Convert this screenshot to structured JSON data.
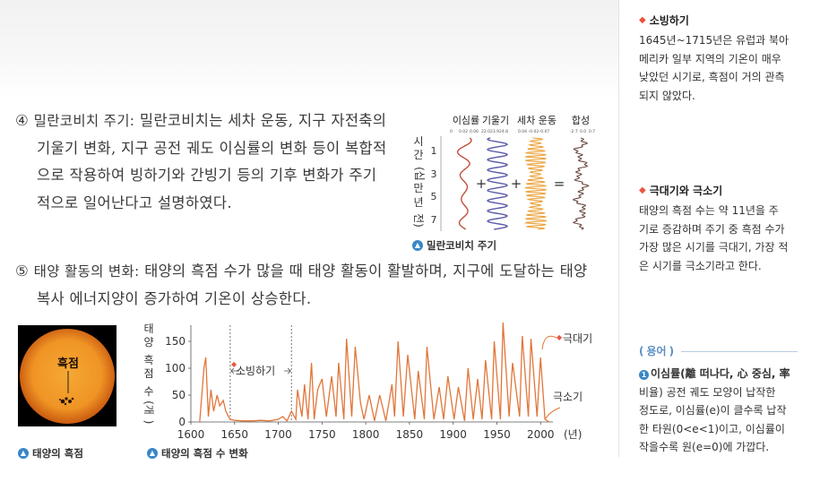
{
  "paragraph4": {
    "num": "④",
    "title": "밀란코비치 주기:",
    "lines": [
      "밀란코비치는 세차 운동, 지구 자전축의",
      "기울기 변화, 지구 공전 궤도 이심률의 변화 등이 복합적",
      "으로 작용하여 빙하기와 간빙기 등의 기후 변화가 주기",
      "적으로 일어난다고 설명하였다."
    ]
  },
  "paragraph5": {
    "num": "⑤",
    "title": "태양 활동의 변화:",
    "lines": [
      "태양의 흑점 수가 많을 때 태양 활동이 활발하며, 지구에 도달하는 태양",
      "복사 에너지양이 증가하여 기온이 상승한다."
    ]
  },
  "milankovitch": {
    "column_titles": [
      "이심률",
      "기울기",
      "세차 운동",
      "합성"
    ],
    "col1_ticks": [
      "0",
      "0.02",
      "0.06"
    ],
    "col2_ticks": [
      "22.0",
      "23.9",
      "24.8"
    ],
    "col3_ticks": [
      "0.04",
      "–0.02",
      "–0.07"
    ],
    "col4_ticks": [
      "-2.7",
      "0.0",
      "0.7"
    ],
    "ylabel_chars": [
      "시",
      "간",
      "(십",
      "만",
      "년",
      "전)"
    ],
    "y_ticks": [
      "1",
      "3",
      "5",
      "7"
    ],
    "operators": [
      "+",
      "+",
      "="
    ],
    "colors": {
      "eccentricity": "#c0503a",
      "tilt": "#5a5aa8",
      "precession": "#eba23a",
      "composite": "#6b4a40"
    },
    "caption": "밀란코비치 주기"
  },
  "sun_image": {
    "label": "흑점",
    "caption": "태양의 흑점",
    "colors": {
      "disk": "#f09a28",
      "rim": "#c95a10"
    }
  },
  "sunspot_chart": {
    "ylabel_chars": [
      "태",
      "양",
      "흑",
      "점",
      "수",
      "(개",
      ")"
    ],
    "xunit": "(년)",
    "annotation_minimum": "소빙하기",
    "label_max": "극대기",
    "label_min": "극소기",
    "caption": "태양의 흑점 수 변화",
    "line_color": "#e1763b"
  },
  "chart_data": {
    "type": "line",
    "title": "",
    "xlabel": "(년)",
    "ylabel": "태양 흑점 수(개)",
    "xlim": [
      1600,
      2010
    ],
    "ylim": [
      0,
      180
    ],
    "x_ticks": [
      1600,
      1650,
      1700,
      1750,
      1800,
      1850,
      1900,
      1950,
      2000
    ],
    "y_ticks": [
      0,
      50,
      100,
      150
    ],
    "shaded_period": [
      1645,
      1715
    ],
    "series": [
      {
        "x": [
          1610,
          1615,
          1617,
          1620,
          1623,
          1626,
          1630,
          1633,
          1637,
          1640,
          1643,
          1645,
          1650,
          1660,
          1670,
          1680,
          1690,
          1700,
          1705,
          1710,
          1715,
          1720,
          1722,
          1727,
          1730,
          1734,
          1738,
          1741,
          1745,
          1750,
          1755,
          1761,
          1766,
          1769,
          1775,
          1778,
          1784,
          1788,
          1794,
          1798,
          1804,
          1810,
          1816,
          1823,
          1830,
          1833,
          1837,
          1843,
          1848,
          1856,
          1860,
          1867,
          1870,
          1878,
          1884,
          1889,
          1894,
          1901,
          1906,
          1913,
          1917,
          1923,
          1928,
          1933,
          1937,
          1944,
          1947,
          1954,
          1957,
          1964,
          1968,
          1976,
          1979,
          1986,
          1989,
          1996,
          2000,
          2005,
          2010
        ],
        "y": [
          0,
          100,
          120,
          10,
          60,
          20,
          50,
          30,
          40,
          20,
          10,
          5,
          3,
          2,
          2,
          3,
          2,
          5,
          10,
          2,
          20,
          5,
          60,
          10,
          70,
          5,
          110,
          5,
          60,
          80,
          10,
          85,
          10,
          110,
          5,
          155,
          10,
          140,
          35,
          5,
          50,
          2,
          50,
          2,
          70,
          10,
          150,
          10,
          125,
          5,
          95,
          5,
          140,
          5,
          65,
          5,
          85,
          5,
          65,
          2,
          100,
          5,
          80,
          5,
          115,
          5,
          150,
          5,
          185,
          10,
          110,
          10,
          160,
          10,
          155,
          10,
          120,
          5,
          0
        ]
      }
    ]
  },
  "sidebar": {
    "box1": {
      "heading": "소빙하기",
      "lines": [
        "1645년~1715년은 유럽과 북아",
        "메리카 일부 지역의 기온이 매우",
        "낮았던 시기로, 흑점이 거의 관측",
        "되지 않았다."
      ]
    },
    "box2": {
      "heading": "극대기와 극소기",
      "lines": [
        "태양의 흑점 수는 약 11년을 주",
        "기로 증감하며 주기 중 흑점 수가",
        "가장 많은 시기를 극대기, 가장 적",
        "은 시기를 극소기라고 한다."
      ]
    },
    "glossary": {
      "title": "용어",
      "num": "1",
      "term": "이심률(離 떠나다, 心 중심, 率",
      "lines": [
        "비율)  공전 궤도 모양이 납작한",
        "정도로, 이심률(e)이 클수록 납작",
        "한 타원(0<e<1)이고, 이심률이",
        "작을수록 원(e=0)에 가깝다."
      ]
    },
    "accent_color": "#e8553e"
  }
}
